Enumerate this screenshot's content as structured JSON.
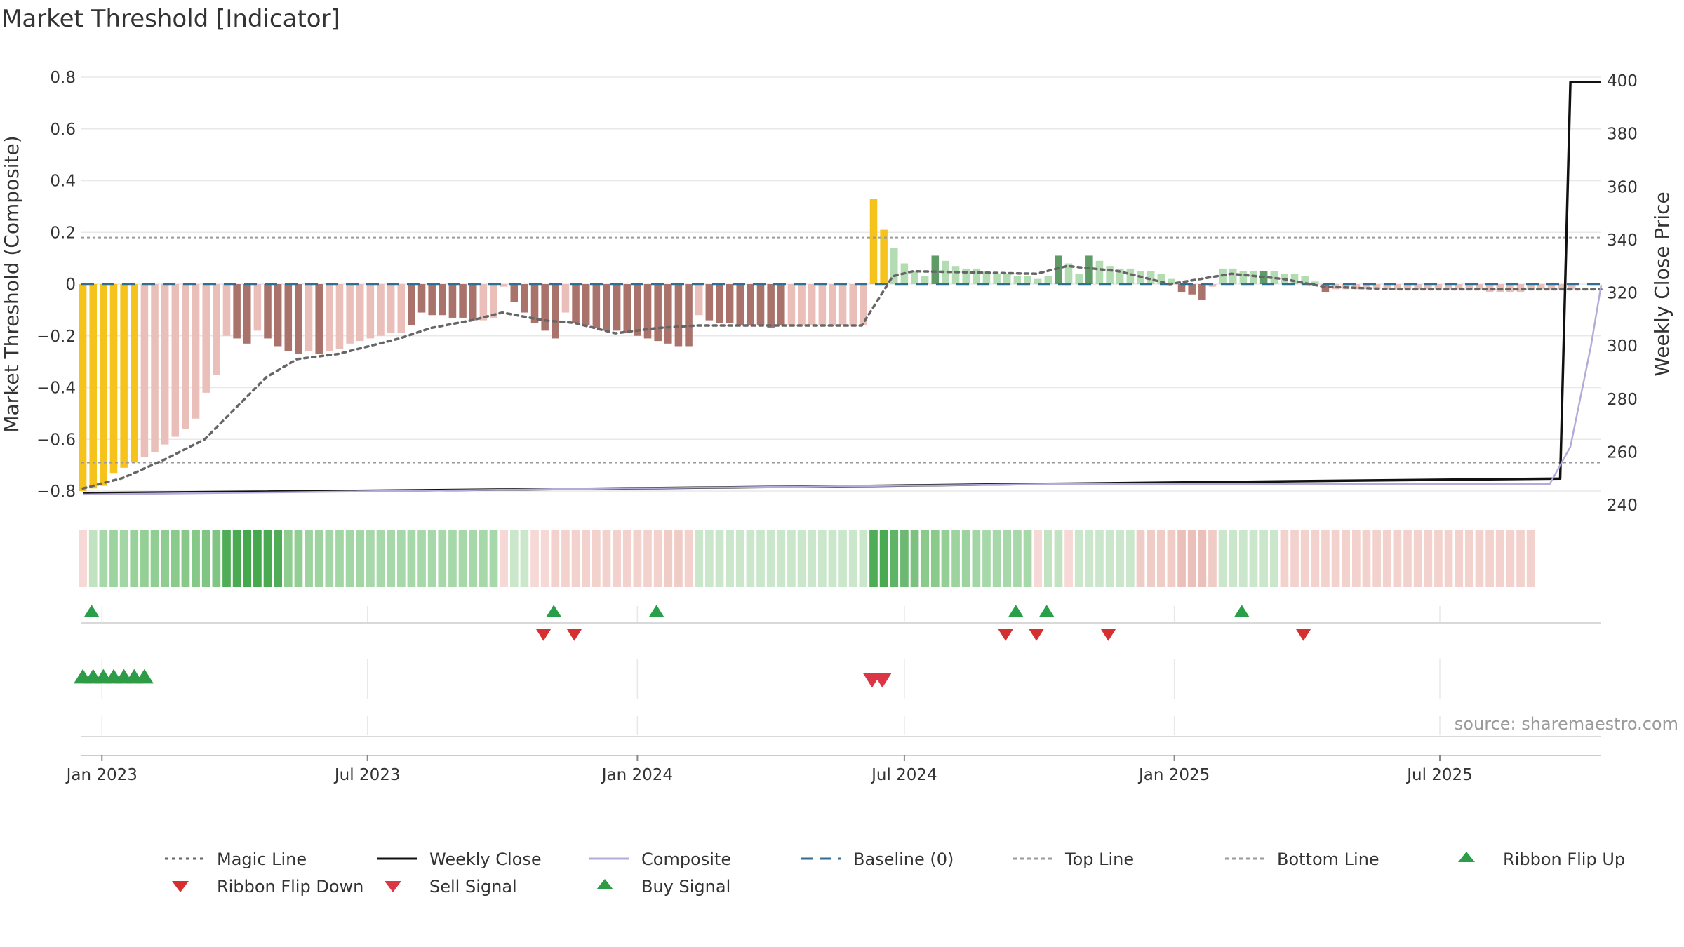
{
  "chart_data": {
    "type": "bar",
    "title": "Market Threshold [Indicator]",
    "ylabel_left": "Market Threshold (Composite)",
    "ylabel_right": "Weekly Close Price",
    "ylim_left": [
      -0.8,
      0.8
    ],
    "yticks_left": [
      "0.8",
      "0.6",
      "0.4",
      "0.2",
      "0",
      "−0.2",
      "−0.4",
      "−0.6",
      "−0.8"
    ],
    "ylim_right": [
      240,
      400
    ],
    "yticks_right": [
      "400",
      "380",
      "360",
      "340",
      "320",
      "300",
      "280",
      "260",
      "240"
    ],
    "x_ticks": [
      {
        "label": "Jan 2023",
        "date": "2023-01-01"
      },
      {
        "label": "Jul 2023",
        "date": "2023-07-01"
      },
      {
        "label": "Jan 2024",
        "date": "2024-01-01"
      },
      {
        "label": "Jul 2024",
        "date": "2024-07-01"
      },
      {
        "label": "Jan 2025",
        "date": "2025-01-01"
      },
      {
        "label": "Jul 2025",
        "date": "2025-07-01"
      }
    ],
    "x_range": [
      "2022-12-18",
      "2025-10-19"
    ],
    "top_line": 0.18,
    "bottom_line": -0.69,
    "baseline": 0,
    "grid": true,
    "legend_position": "bottom",
    "source": "source: sharemaestro.com",
    "bar_colors": {
      "gold": "#f6c31c",
      "light_red": "#ebbfb9",
      "dark_red": "#a9726b",
      "light_green": "#b3dcb3",
      "dark_green": "#5e9b66"
    },
    "composite_bars": {
      "start_week": "2022-12-19",
      "values": [
        -0.8,
        -0.79,
        -0.78,
        -0.73,
        -0.71,
        -0.69,
        -0.67,
        -0.65,
        -0.62,
        -0.59,
        -0.56,
        -0.52,
        -0.42,
        -0.35,
        -0.2,
        -0.21,
        -0.23,
        -0.18,
        -0.21,
        -0.24,
        -0.26,
        -0.27,
        -0.26,
        -0.27,
        -0.26,
        -0.25,
        -0.23,
        -0.22,
        -0.21,
        -0.2,
        -0.19,
        -0.19,
        -0.16,
        -0.11,
        -0.12,
        -0.12,
        -0.13,
        -0.13,
        -0.14,
        -0.14,
        -0.13,
        -0.01,
        -0.07,
        -0.11,
        -0.15,
        -0.18,
        -0.21,
        -0.11,
        -0.15,
        -0.16,
        -0.17,
        -0.18,
        -0.18,
        -0.19,
        -0.2,
        -0.21,
        -0.22,
        -0.23,
        -0.24,
        -0.24,
        -0.12,
        -0.14,
        -0.15,
        -0.15,
        -0.16,
        -0.16,
        -0.16,
        -0.17,
        -0.16,
        -0.16,
        -0.16,
        -0.16,
        -0.16,
        -0.16,
        -0.16,
        -0.16,
        -0.16,
        0.33,
        0.21,
        0.14,
        0.08,
        0.05,
        0.03,
        0.11,
        0.09,
        0.07,
        0.06,
        0.06,
        0.05,
        0.04,
        0.04,
        0.03,
        0.03,
        0.02,
        0.03,
        0.11,
        0.08,
        0.04,
        0.11,
        0.09,
        0.07,
        0.06,
        0.06,
        0.05,
        0.05,
        0.04,
        0.02,
        -0.03,
        -0.04,
        -0.06,
        -0.01,
        0.06,
        0.06,
        0.05,
        0.05,
        0.05,
        0.05,
        0.04,
        0.04,
        0.03,
        0.01,
        -0.03,
        -0.02,
        -0.02,
        -0.02,
        -0.02,
        -0.02,
        -0.02,
        -0.02,
        -0.02,
        -0.02,
        -0.02,
        -0.02,
        -0.02,
        -0.02,
        -0.02,
        -0.02,
        -0.03,
        -0.03,
        -0.03,
        -0.03,
        -0.02,
        -0.02,
        -0.02,
        -0.02,
        -0.02
      ],
      "colors": [
        "gold",
        "gold",
        "gold",
        "gold",
        "gold",
        "gold",
        "light_red",
        "light_red",
        "light_red",
        "light_red",
        "light_red",
        "light_red",
        "light_red",
        "light_red",
        "light_red",
        "dark_red",
        "dark_red",
        "light_red",
        "dark_red",
        "dark_red",
        "dark_red",
        "dark_red",
        "light_red",
        "dark_red",
        "light_red",
        "light_red",
        "light_red",
        "light_red",
        "light_red",
        "light_red",
        "light_red",
        "light_red",
        "dark_red",
        "dark_red",
        "dark_red",
        "dark_red",
        "dark_red",
        "dark_red",
        "dark_red",
        "light_red",
        "light_red",
        "light_red",
        "dark_red",
        "dark_red",
        "dark_red",
        "dark_red",
        "dark_red",
        "light_red",
        "dark_red",
        "dark_red",
        "dark_red",
        "dark_red",
        "dark_red",
        "dark_red",
        "dark_red",
        "dark_red",
        "dark_red",
        "dark_red",
        "dark_red",
        "dark_red",
        "light_red",
        "dark_red",
        "dark_red",
        "dark_red",
        "dark_red",
        "dark_red",
        "dark_red",
        "dark_red",
        "dark_red",
        "light_red",
        "light_red",
        "light_red",
        "light_red",
        "light_red",
        "light_red",
        "light_red",
        "light_red",
        "gold",
        "gold",
        "light_green",
        "light_green",
        "light_green",
        "light_green",
        "dark_green",
        "light_green",
        "light_green",
        "light_green",
        "light_green",
        "light_green",
        "light_green",
        "light_green",
        "light_green",
        "light_green",
        "light_green",
        "light_green",
        "dark_green",
        "light_green",
        "light_green",
        "dark_green",
        "light_green",
        "light_green",
        "light_green",
        "light_green",
        "light_green",
        "light_green",
        "light_green",
        "light_green",
        "dark_red",
        "dark_red",
        "dark_red",
        "light_red",
        "light_green",
        "light_green",
        "light_green",
        "light_green",
        "dark_green",
        "light_green",
        "light_green",
        "light_green",
        "light_green",
        "light_green",
        "dark_red",
        "light_red",
        "light_red",
        "light_red",
        "light_red",
        "light_red",
        "light_red",
        "light_red",
        "light_red",
        "light_red",
        "light_red",
        "light_red",
        "light_red",
        "light_red",
        "light_red",
        "light_red",
        "light_red",
        "light_red",
        "light_red",
        "light_red",
        "light_red",
        "light_red",
        "light_red",
        "light_red",
        "light_red"
      ]
    },
    "series": [
      {
        "name": "Magic Line",
        "color": "#666666",
        "style": "dotted",
        "axis": "left",
        "points": [
          [
            "2022-12-19",
            -0.79
          ],
          [
            "2023-01-15",
            -0.75
          ],
          [
            "2023-02-12",
            -0.68
          ],
          [
            "2023-03-12",
            -0.6
          ],
          [
            "2023-04-02",
            -0.48
          ],
          [
            "2023-04-23",
            -0.36
          ],
          [
            "2023-05-14",
            -0.29
          ],
          [
            "2023-06-11",
            -0.27
          ],
          [
            "2023-07-09",
            -0.23
          ],
          [
            "2023-07-23",
            -0.21
          ],
          [
            "2023-08-13",
            -0.17
          ],
          [
            "2023-09-10",
            -0.14
          ],
          [
            "2023-10-01",
            -0.11
          ],
          [
            "2023-10-29",
            -0.14
          ],
          [
            "2023-11-19",
            -0.15
          ],
          [
            "2023-12-17",
            -0.19
          ],
          [
            "2024-01-14",
            -0.17
          ],
          [
            "2024-02-11",
            -0.16
          ],
          [
            "2024-06-02",
            -0.16
          ],
          [
            "2024-06-23",
            0.03
          ],
          [
            "2024-07-07",
            0.05
          ],
          [
            "2024-09-29",
            0.04
          ],
          [
            "2024-10-20",
            0.07
          ],
          [
            "2024-11-24",
            0.05
          ],
          [
            "2024-12-29",
            0.0
          ],
          [
            "2025-02-09",
            0.04
          ],
          [
            "2025-03-16",
            0.02
          ],
          [
            "2025-04-13",
            -0.01
          ],
          [
            "2025-06-01",
            -0.02
          ],
          [
            "2025-10-19",
            -0.02
          ]
        ]
      },
      {
        "name": "Weekly Close",
        "color": "#111111",
        "style": "solid",
        "axis": "right",
        "points": [
          [
            "2022-12-19",
            244.5
          ],
          [
            "2023-04-09",
            245.0
          ],
          [
            "2023-11-05",
            246.0
          ],
          [
            "2024-05-05",
            247.0
          ],
          [
            "2024-10-06",
            248.0
          ],
          [
            "2025-03-23",
            249.0
          ],
          [
            "2025-09-21",
            250.0
          ],
          [
            "2025-09-28",
            399.5
          ],
          [
            "2025-10-19",
            399.5
          ]
        ]
      },
      {
        "name": "Composite",
        "color": "#b4acd8",
        "style": "solid",
        "axis": "right",
        "points": [
          [
            "2022-12-19",
            244.0
          ],
          [
            "2023-06-04",
            245.0
          ],
          [
            "2023-11-05",
            246.0
          ],
          [
            "2024-05-05",
            247.0
          ],
          [
            "2024-11-03",
            248.0
          ],
          [
            "2025-09-14",
            248.0
          ],
          [
            "2025-09-28",
            262.0
          ],
          [
            "2025-10-12",
            300.0
          ],
          [
            "2025-10-19",
            323.0
          ]
        ]
      },
      {
        "name": "Baseline (0)",
        "color": "#2f6f91",
        "style": "dashed",
        "value": 0
      },
      {
        "name": "Top Line",
        "color": "#9a9a9a",
        "style": "dotted",
        "value": 0.18
      },
      {
        "name": "Bottom Line",
        "color": "#9a9a9a",
        "style": "dotted",
        "value": -0.69
      }
    ],
    "ribbon": {
      "start_week": "2022-12-19",
      "colors": [
        "#f6d9d6",
        "#c2e3c2",
        "#a7d8a9",
        "#9dd39e",
        "#a2d6a4",
        "#98d19a",
        "#94cf96",
        "#91ce93",
        "#8ecc90",
        "#8acb8c",
        "#88c98a",
        "#85c887",
        "#80c583",
        "#80c583",
        "#4fad57",
        "#49aa52",
        "#44a84d",
        "#44a84d",
        "#49aa52",
        "#4fad57",
        "#8ecc90",
        "#91ce93",
        "#9dd39e",
        "#9dd39e",
        "#a2d6a4",
        "#a2d6a4",
        "#a2d6a4",
        "#a2d6a4",
        "#a7d8a9",
        "#a7d8a9",
        "#a7d8a9",
        "#a7d8a9",
        "#a7d8a9",
        "#a7d8a9",
        "#a7d8a9",
        "#a7d8a9",
        "#a7d8a9",
        "#a7d8a9",
        "#a7d8a9",
        "#a7d8a9",
        "#a7d8a9",
        "#f6d9d6",
        "#cbe7cb",
        "#cbe7cb",
        "#f6d9d6",
        "#f6d9d6",
        "#f3d2ce",
        "#f3d2ce",
        "#f3d2ce",
        "#f3d2ce",
        "#f3d2ce",
        "#f3d2ce",
        "#f3d2ce",
        "#f3d2ce",
        "#f3d2ce",
        "#f3d2ce",
        "#f3d2ce",
        "#f0ccc7",
        "#f0ccc7",
        "#f3d2ce",
        "#cbe7cb",
        "#cbe7cb",
        "#cbe7cb",
        "#cbe7cb",
        "#cbe7cb",
        "#cbe7cb",
        "#cbe7cb",
        "#cbe7cb",
        "#cbe7cb",
        "#cbe7cb",
        "#cbe7cb",
        "#cbe7cb",
        "#cbe7cb",
        "#cbe7cb",
        "#cbe7cb",
        "#cbe7cb",
        "#cbe7cb",
        "#4fad57",
        "#49aa52",
        "#5fb566",
        "#6db973",
        "#7cc17f",
        "#8acb8c",
        "#8acb8c",
        "#94cf96",
        "#9dd39e",
        "#9dd39e",
        "#a2d6a4",
        "#a7d8a9",
        "#a7d8a9",
        "#a7d8a9",
        "#a7d8a9",
        "#a7d8a9",
        "#f6d9d6",
        "#c2e3c2",
        "#c2e3c2",
        "#f6d9d6",
        "#cbe7cb",
        "#cbe7cb",
        "#cbe7cb",
        "#cbe7cb",
        "#cbe7cb",
        "#cbe7cb",
        "#f0ccc7",
        "#f0ccc7",
        "#f0ccc7",
        "#f0ccc7",
        "#ebc0ba",
        "#ebc0ba",
        "#ebc0ba",
        "#f0ccc7",
        "#cbe7cb",
        "#cbe7cb",
        "#cbe7cb",
        "#cbe7cb",
        "#cbe7cb",
        "#cbe7cb",
        "#f3d2ce",
        "#f3d2ce",
        "#f3d2ce",
        "#f3d2ce",
        "#f3d2ce",
        "#f3d2ce",
        "#f3d2ce",
        "#f3d2ce",
        "#f3d2ce",
        "#f3d2ce",
        "#f3d2ce",
        "#f3d2ce",
        "#f3d2ce",
        "#f3d2ce",
        "#f3d2ce",
        "#f3d2ce",
        "#f3d2ce",
        "#f3d2ce",
        "#f3d2ce",
        "#f3d2ce",
        "#f3d2ce",
        "#f3d2ce",
        "#f3d2ce",
        "#f3d2ce",
        "#f3d2ce"
      ]
    },
    "ribbon_flip_up": [
      "2022-12-25",
      "2023-11-05",
      "2024-01-14",
      "2024-09-15",
      "2024-10-06",
      "2025-02-16"
    ],
    "ribbon_flip_down": [
      "2023-10-29",
      "2023-11-19",
      "2024-09-08",
      "2024-09-29",
      "2024-11-17",
      "2025-03-30"
    ],
    "buy_signal": [
      "2022-12-19",
      "2022-12-26",
      "2023-01-02",
      "2023-01-09",
      "2023-01-16",
      "2023-01-23",
      "2023-01-30"
    ],
    "sell_signal": [
      "2024-06-09",
      "2024-06-16"
    ],
    "marker_colors": {
      "ribbon_flip_up": "#2a9f4a",
      "ribbon_flip_down": "#d62f2f",
      "buy_signal": "#2e9c46",
      "sell_signal": "#dc3545"
    },
    "legend": [
      {
        "label": "Magic Line",
        "kind": "dotted",
        "color": "#666666"
      },
      {
        "label": "Weekly Close",
        "kind": "line",
        "color": "#111111"
      },
      {
        "label": "Composite",
        "kind": "line",
        "color": "#b4acd8"
      },
      {
        "label": "Baseline (0)",
        "kind": "dashed",
        "color": "#2f6f91"
      },
      {
        "label": "Top Line",
        "kind": "dotted",
        "color": "#9a9a9a"
      },
      {
        "label": "Bottom Line",
        "kind": "dotted",
        "color": "#9a9a9a"
      },
      {
        "label": "Ribbon Flip Up",
        "kind": "tri-up",
        "color": "#2a9f4a"
      },
      {
        "label": "Ribbon Flip Down",
        "kind": "tri-down",
        "color": "#d62f2f"
      },
      {
        "label": "Sell Signal",
        "kind": "tri-down",
        "color": "#dc3545"
      },
      {
        "label": "Buy Signal",
        "kind": "tri-up",
        "color": "#2e9c46"
      }
    ]
  }
}
